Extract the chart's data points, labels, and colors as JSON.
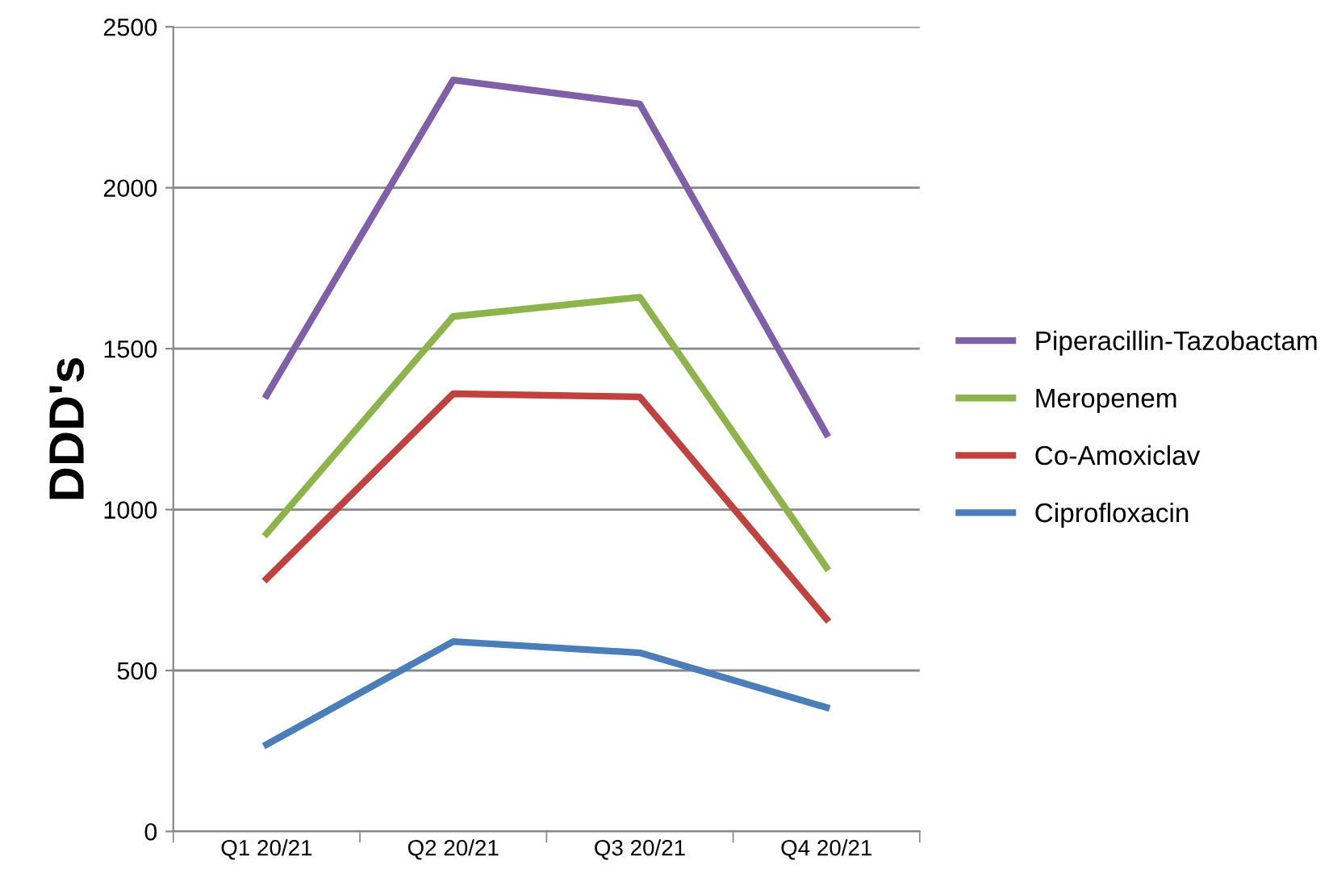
{
  "chart_data": {
    "type": "line",
    "ylabel": "DDD's",
    "categories": [
      "Q1 20/21",
      "Q2 20/21",
      "Q3 20/21",
      "Q4 20/21"
    ],
    "series": [
      {
        "name": "Piperacillin-Tazobactam",
        "color": "#7f5fa8",
        "values": [
          1355,
          2335,
          2260,
          1235
        ]
      },
      {
        "name": "Meropenem",
        "color": "#8cb44a",
        "values": [
          925,
          1600,
          1660,
          820
        ]
      },
      {
        "name": "Co-Amoxiclav",
        "color": "#c0413d",
        "values": [
          785,
          1360,
          1350,
          660
        ]
      },
      {
        "name": "Ciprofloxacin",
        "color": "#4a7ebb",
        "values": [
          270,
          590,
          555,
          385
        ]
      }
    ],
    "ylim": [
      0,
      2500
    ],
    "yticks": [
      0,
      500,
      1000,
      1500,
      2000,
      2500
    ],
    "grid": "y",
    "legend": "right",
    "marker": "none",
    "line_style": "solid"
  }
}
